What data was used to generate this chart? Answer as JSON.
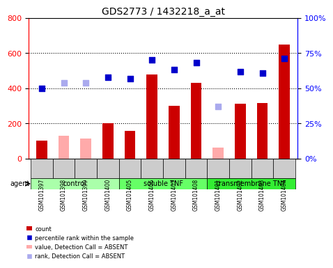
{
  "title": "GDS2773 / 1432218_a_at",
  "samples": [
    "GSM101397",
    "GSM101398",
    "GSM101399",
    "GSM101400",
    "GSM101405",
    "GSM101406",
    "GSM101407",
    "GSM101408",
    "GSM101401",
    "GSM101402",
    "GSM101403",
    "GSM101404"
  ],
  "count_values": [
    100,
    null,
    null,
    200,
    155,
    480,
    300,
    430,
    null,
    310,
    315,
    650
  ],
  "count_absent": [
    null,
    130,
    115,
    null,
    null,
    null,
    null,
    null,
    60,
    null,
    null,
    null
  ],
  "rank_values": [
    50,
    null,
    null,
    58,
    57,
    70,
    63,
    68,
    null,
    62,
    61,
    71
  ],
  "rank_absent": [
    null,
    54,
    54,
    null,
    null,
    null,
    null,
    null,
    37,
    null,
    null,
    null
  ],
  "groups": [
    {
      "label": "control",
      "start": 0,
      "end": 4,
      "color": "#aaffaa"
    },
    {
      "label": "soluble TNF",
      "start": 4,
      "end": 8,
      "color": "#66ff66"
    },
    {
      "label": "transmembrane TNF",
      "start": 8,
      "end": 12,
      "color": "#33ee33"
    }
  ],
  "ylim_left": [
    0,
    800
  ],
  "ylim_right": [
    0,
    100
  ],
  "yticks_left": [
    0,
    200,
    400,
    600,
    800
  ],
  "yticks_right": [
    0,
    25,
    50,
    75,
    100
  ],
  "ytick_labels_right": [
    "0%",
    "25%",
    "50%",
    "75%",
    "100%"
  ],
  "bar_color_present": "#cc0000",
  "bar_color_absent": "#ffaaaa",
  "rank_color_present": "#0000cc",
  "rank_color_absent": "#aaaaee",
  "grid_color": "#000000",
  "background_plot": "#ffffff",
  "background_xtick": "#cccccc",
  "bar_width": 0.5
}
